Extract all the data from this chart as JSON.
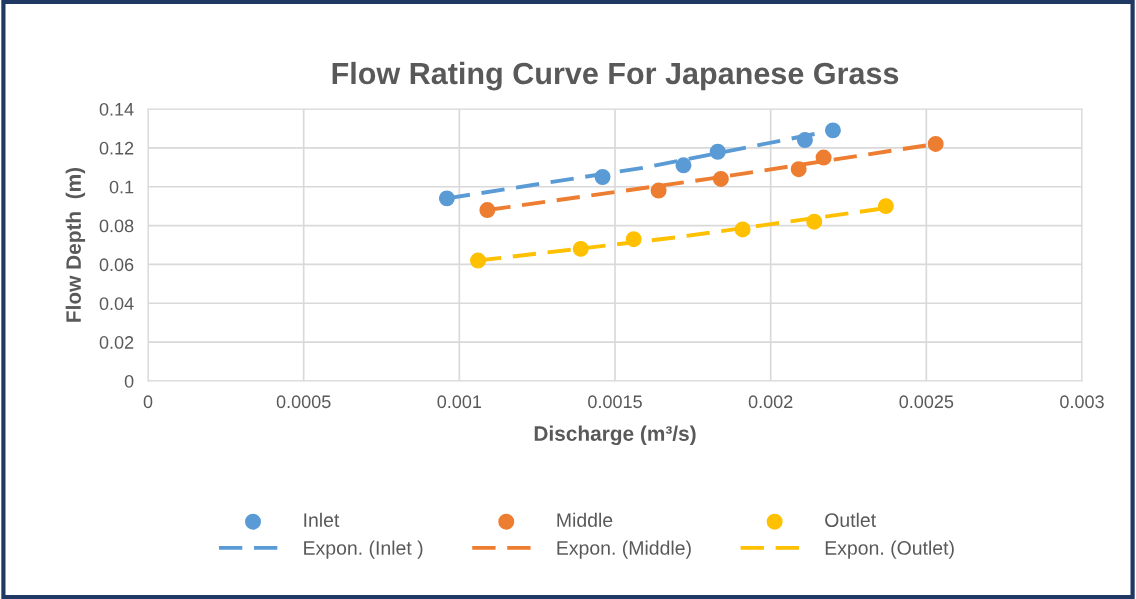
{
  "chart_data": {
    "type": "scatter",
    "title": "Flow Rating Curve For Japanese Grass",
    "xlabel": "Discharge (m³/s)",
    "ylabel": "Flow Depth  (m)",
    "xlim": [
      0,
      0.003
    ],
    "xticks": [
      0,
      0.0005,
      0.001,
      0.0015,
      0.002,
      0.0025,
      0.003
    ],
    "ylim": [
      0,
      0.14
    ],
    "yticks": [
      0,
      0.02,
      0.04,
      0.06,
      0.08,
      0.1,
      0.12,
      0.14
    ],
    "grid": true,
    "legend": "bottom",
    "marker": "circle",
    "series": [
      {
        "name": "Inlet",
        "color": "#5b9bd5",
        "x": [
          0.00096,
          0.00146,
          0.00172,
          0.00183,
          0.00211,
          0.0022
        ],
        "values": [
          0.094,
          0.105,
          0.111,
          0.118,
          0.124,
          0.129
        ]
      },
      {
        "name": "Expon. (Inlet )",
        "type": "line",
        "line_style": "dashed",
        "marker": "none",
        "color": "#5b9bd5",
        "x": [
          0.00096,
          0.0016,
          0.0022
        ],
        "values": [
          0.094,
          0.11,
          0.129
        ]
      },
      {
        "name": "Middle",
        "color": "#ed7d31",
        "x": [
          0.00109,
          0.00164,
          0.00184,
          0.00209,
          0.00217,
          0.00253
        ],
        "values": [
          0.088,
          0.098,
          0.104,
          0.109,
          0.115,
          0.122
        ]
      },
      {
        "name": "Expon. (Middle)",
        "type": "line",
        "line_style": "dashed",
        "marker": "none",
        "color": "#ed7d31",
        "x": [
          0.00109,
          0.0018,
          0.00253
        ],
        "values": [
          0.088,
          0.104,
          0.122
        ]
      },
      {
        "name": "Outlet",
        "color": "#ffc000",
        "x": [
          0.00106,
          0.00139,
          0.00156,
          0.00191,
          0.00214,
          0.00237
        ],
        "values": [
          0.062,
          0.068,
          0.073,
          0.078,
          0.082,
          0.09
        ]
      },
      {
        "name": "Expon. (Outlet)",
        "type": "line",
        "line_style": "dashed",
        "marker": "none",
        "color": "#ffc000",
        "x": [
          0.00106,
          0.0017,
          0.00237
        ],
        "values": [
          0.062,
          0.074,
          0.089
        ]
      }
    ]
  }
}
